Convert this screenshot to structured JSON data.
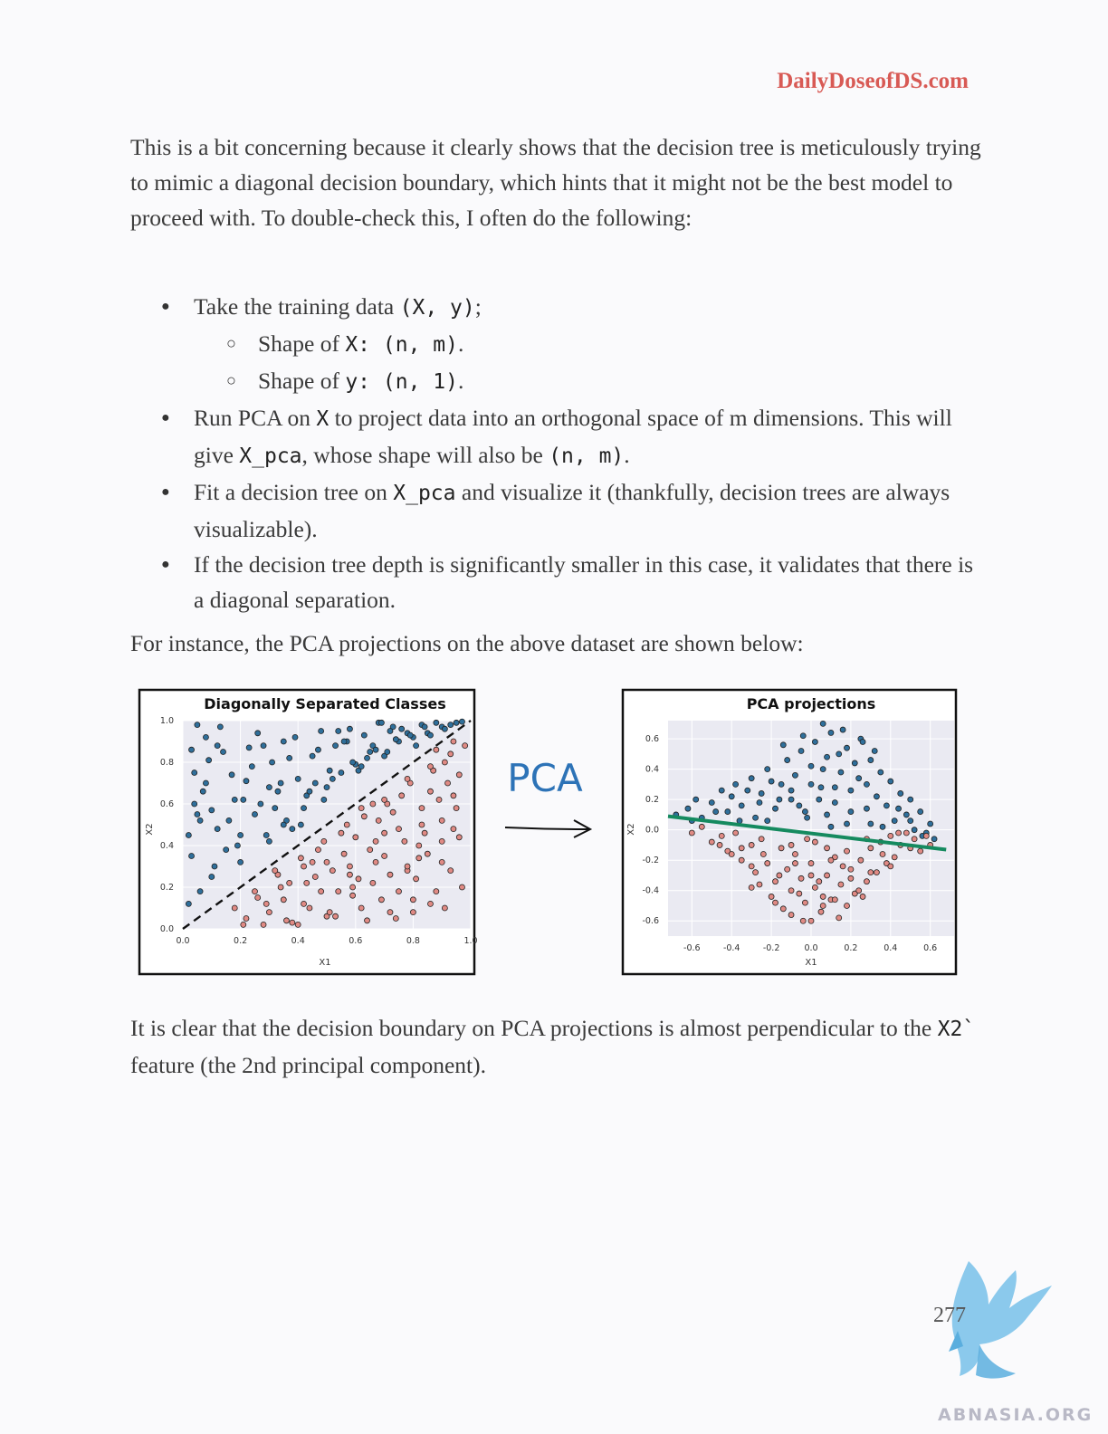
{
  "header": {
    "site": "DailyDoseofDS.com"
  },
  "intro": {
    "t1": "This is a bit concerning because it clearly shows that the decision tree is meticulously trying to mimic a diagonal decision boundary, which hints that it might not be the best model to proceed with. To double-check this, I often do the following:"
  },
  "steps": {
    "b1_t1": "Take the training data ",
    "b1_c1": "(X, y)",
    "b1_t2": ";",
    "s1_t1": "Shape of ",
    "s1_c1": "X",
    "s1_t2": ": ",
    "s1_c2": "(n, m)",
    "s1_t3": ".",
    "s2_t1": "Shape of ",
    "s2_c1": "y",
    "s2_t2": ": ",
    "s2_c2": "(n, 1)",
    "s2_t3": ".",
    "b2_t1": "Run PCA on ",
    "b2_c1": "X",
    "b2_t2": " to project data into an orthogonal space of m dimensions. This will give ",
    "b2_c2": "X_pca",
    "b2_t3": ", whose shape will also be ",
    "b2_c3": "(n, m)",
    "b2_t4": ".",
    "b3_t1": "Fit a decision tree on ",
    "b3_c1": "X_pca",
    "b3_t2": " and visualize it (thankfully, decision trees are always visualizable).",
    "b4_t1": "If the decision tree depth is significantly smaller in this case, it validates that there is a diagonal separation."
  },
  "lead": "For instance, the PCA projections on the above dataset are shown below:",
  "figure": {
    "arrow_label": "PCA"
  },
  "conclusion": {
    "t1": "It is clear that the decision boundary on PCA projections is almost perpendicular to the ",
    "c1": "X2`",
    "t2": " feature (the 2nd principal component)."
  },
  "page_number": "277",
  "watermark": "ABNASIA.ORG",
  "colors": {
    "blue": "#2f6f9b",
    "red": "#e08a84",
    "green": "#158a5f",
    "accent": "#d85a55",
    "pca_text": "#2d73b7"
  },
  "chart_data": [
    {
      "type": "scatter",
      "title": "Diagonally Separated Classes",
      "xlabel": "X1",
      "ylabel": "X2",
      "xlim": [
        0,
        1
      ],
      "ylim": [
        0,
        1
      ],
      "xticks": [
        "0.0",
        "0.2",
        "0.4",
        "0.6",
        "0.8",
        "1.0"
      ],
      "yticks": [
        "0.0",
        "0.2",
        "0.4",
        "0.6",
        "0.8",
        "1.0"
      ],
      "grid": true,
      "boundary": {
        "style": "dashed",
        "x": [
          0.0,
          1.0
        ],
        "y": [
          0.0,
          1.0
        ]
      },
      "series": [
        {
          "color": "blue",
          "x": [
            0.02,
            0.03,
            0.05,
            0.04,
            0.08,
            0.1,
            0.12,
            0.07,
            0.03,
            0.15,
            0.18,
            0.06,
            0.09,
            0.13,
            0.02,
            0.2,
            0.22,
            0.25,
            0.28,
            0.16,
            0.11,
            0.04,
            0.3,
            0.33,
            0.35,
            0.38,
            0.24,
            0.19,
            0.27,
            0.14,
            0.08,
            0.42,
            0.45,
            0.48,
            0.4,
            0.36,
            0.31,
            0.26,
            0.21,
            0.05,
            0.5,
            0.53,
            0.55,
            0.58,
            0.47,
            0.43,
            0.39,
            0.34,
            0.29,
            0.23,
            0.6,
            0.63,
            0.65,
            0.68,
            0.57,
            0.52,
            0.44,
            0.37,
            0.32,
            0.17,
            0.7,
            0.73,
            0.75,
            0.78,
            0.66,
            0.61,
            0.54,
            0.49,
            0.41,
            0.12,
            0.8,
            0.83,
            0.85,
            0.88,
            0.76,
            0.71,
            0.64,
            0.56,
            0.46,
            0.3,
            0.9,
            0.93,
            0.95,
            0.97,
            0.86,
            0.81,
            0.74,
            0.67,
            0.59,
            0.51,
            0.06,
            0.1,
            0.2,
            0.35,
            0.62,
            0.72,
            0.84,
            0.91,
            0.79,
            0.69
          ],
          "y": [
            0.12,
            0.35,
            0.55,
            0.75,
            0.92,
            0.25,
            0.48,
            0.66,
            0.86,
            0.38,
            0.62,
            0.18,
            0.81,
            0.97,
            0.45,
            0.32,
            0.71,
            0.55,
            0.88,
            0.52,
            0.3,
            0.6,
            0.42,
            0.66,
            0.9,
            0.48,
            0.78,
            0.4,
            0.6,
            0.85,
            0.7,
            0.58,
            0.83,
            0.95,
            0.72,
            0.52,
            0.8,
            0.94,
            0.62,
            0.98,
            0.68,
            0.88,
            0.75,
            0.96,
            0.86,
            0.64,
            0.92,
            0.7,
            0.45,
            0.87,
            0.79,
            0.93,
            0.85,
            0.99,
            0.9,
            0.72,
            0.66,
            0.82,
            0.58,
            0.74,
            0.83,
            0.97,
            0.9,
            0.94,
            0.88,
            0.76,
            0.95,
            0.62,
            0.5,
            0.88,
            0.92,
            0.98,
            0.94,
            0.99,
            0.96,
            0.85,
            0.82,
            0.9,
            0.7,
            0.68,
            0.97,
            0.98,
            0.99,
            0.995,
            0.93,
            0.88,
            0.91,
            0.86,
            0.8,
            0.76,
            0.52,
            0.57,
            0.45,
            0.5,
            0.78,
            0.95,
            0.97,
            0.96,
            0.93,
            0.99
          ]
        },
        {
          "color": "red",
          "x": [
            0.18,
            0.22,
            0.26,
            0.3,
            0.34,
            0.38,
            0.42,
            0.46,
            0.5,
            0.54,
            0.58,
            0.62,
            0.66,
            0.7,
            0.74,
            0.78,
            0.82,
            0.86,
            0.9,
            0.94,
            0.97,
            0.25,
            0.33,
            0.41,
            0.49,
            0.57,
            0.65,
            0.73,
            0.81,
            0.89,
            0.95,
            0.36,
            0.44,
            0.52,
            0.6,
            0.68,
            0.76,
            0.84,
            0.92,
            0.47,
            0.55,
            0.63,
            0.71,
            0.79,
            0.87,
            0.93,
            0.59,
            0.67,
            0.75,
            0.83,
            0.91,
            0.7,
            0.78,
            0.86,
            0.94,
            0.8,
            0.88,
            0.96,
            0.9,
            0.98,
            0.21,
            0.29,
            0.37,
            0.45,
            0.53,
            0.61,
            0.69,
            0.77,
            0.85,
            0.93,
            0.32,
            0.4,
            0.48,
            0.56,
            0.64,
            0.72,
            0.8,
            0.88,
            0.96,
            0.43,
            0.51,
            0.59,
            0.67,
            0.75,
            0.83,
            0.91,
            0.62,
            0.7,
            0.78,
            0.86,
            0.94,
            0.72,
            0.82,
            0.9,
            0.66,
            0.58,
            0.5,
            0.42,
            0.35,
            0.28
          ],
          "y": [
            0.1,
            0.05,
            0.15,
            0.08,
            0.2,
            0.03,
            0.12,
            0.25,
            0.06,
            0.18,
            0.3,
            0.1,
            0.22,
            0.35,
            0.05,
            0.28,
            0.4,
            0.12,
            0.32,
            0.48,
            0.2,
            0.18,
            0.26,
            0.34,
            0.42,
            0.5,
            0.38,
            0.56,
            0.24,
            0.62,
            0.58,
            0.04,
            0.1,
            0.28,
            0.44,
            0.52,
            0.64,
            0.46,
            0.7,
            0.38,
            0.46,
            0.54,
            0.6,
            0.7,
            0.76,
            0.84,
            0.2,
            0.32,
            0.48,
            0.58,
            0.8,
            0.62,
            0.72,
            0.66,
            0.9,
            0.14,
            0.86,
            0.74,
            0.52,
            0.88,
            0.02,
            0.12,
            0.22,
            0.32,
            0.06,
            0.24,
            0.14,
            0.42,
            0.36,
            0.28,
            0.28,
            0.02,
            0.18,
            0.36,
            0.04,
            0.26,
            0.08,
            0.18,
            0.44,
            0.22,
            0.08,
            0.16,
            0.42,
            0.18,
            0.5,
            0.1,
            0.58,
            0.46,
            0.3,
            0.78,
            0.64,
            0.08,
            0.34,
            0.42,
            0.6,
            0.26,
            0.32,
            0.3,
            0.14,
            0.02
          ]
        }
      ]
    },
    {
      "type": "scatter",
      "title": "PCA projections",
      "xlabel": "X1",
      "ylabel": "X2",
      "xlim": [
        -0.72,
        0.72
      ],
      "ylim": [
        -0.7,
        0.72
      ],
      "xticks": [
        "-0.6",
        "-0.4",
        "-0.2",
        "0.0",
        "0.2",
        "0.4",
        "0.6"
      ],
      "yticks": [
        "0.6",
        "0.4",
        "0.2",
        "0.0",
        "-0.2",
        "-0.4",
        "-0.6"
      ],
      "grid": true,
      "boundary": {
        "style": "solid",
        "color": "green",
        "x": [
          -0.72,
          0.68
        ],
        "y": [
          0.09,
          -0.13
        ]
      },
      "series": [
        {
          "color": "blue",
          "x": [
            -0.68,
            -0.62,
            -0.58,
            -0.55,
            -0.5,
            -0.45,
            -0.42,
            -0.38,
            -0.35,
            -0.3,
            -0.28,
            -0.25,
            -0.22,
            -0.18,
            -0.15,
            -0.12,
            -0.1,
            -0.08,
            -0.05,
            -0.03,
            0.0,
            0.02,
            0.05,
            0.08,
            0.1,
            0.12,
            0.15,
            0.18,
            0.2,
            0.22,
            0.25,
            0.28,
            0.3,
            0.33,
            0.35,
            0.38,
            0.4,
            0.42,
            0.45,
            0.48,
            0.5,
            0.52,
            0.55,
            0.58,
            -0.4,
            -0.32,
            -0.2,
            -0.1,
            0.0,
            0.06,
            0.14,
            0.24,
            0.32,
            -0.26,
            -0.16,
            -0.06,
            0.04,
            0.12,
            0.2,
            0.28,
            -0.14,
            -0.04,
            0.06,
            0.16,
            0.26,
            -0.36,
            -0.48,
            0.36,
            0.44,
            0.5,
            0.6,
            0.62,
            -0.02,
            0.08,
            0.18,
            -0.22,
            0.1,
            0.3,
            -0.6,
            0.56
          ],
          "y": [
            0.1,
            0.14,
            0.2,
            0.08,
            0.18,
            0.26,
            0.12,
            0.3,
            0.16,
            0.34,
            0.08,
            0.24,
            0.4,
            0.14,
            0.3,
            0.46,
            0.2,
            0.36,
            0.52,
            0.12,
            0.42,
            0.58,
            0.28,
            0.48,
            0.64,
            0.18,
            0.38,
            0.54,
            0.26,
            0.44,
            0.6,
            0.3,
            0.46,
            0.22,
            0.38,
            0.16,
            0.32,
            0.06,
            0.24,
            0.1,
            0.2,
            0.0,
            0.12,
            -0.02,
            0.22,
            0.26,
            0.32,
            0.26,
            0.3,
            0.4,
            0.5,
            0.34,
            0.52,
            0.18,
            0.2,
            0.16,
            0.2,
            0.28,
            0.12,
            0.14,
            0.56,
            0.62,
            0.7,
            0.66,
            0.58,
            0.06,
            0.12,
            0.02,
            0.14,
            0.06,
            0.04,
            -0.06,
            0.08,
            0.1,
            0.04,
            0.06,
            0.02,
            0.04,
            0.06,
            -0.04
          ]
        },
        {
          "color": "red",
          "x": [
            -0.6,
            -0.55,
            -0.5,
            -0.45,
            -0.42,
            -0.38,
            -0.35,
            -0.3,
            -0.28,
            -0.25,
            -0.22,
            -0.18,
            -0.15,
            -0.12,
            -0.1,
            -0.08,
            -0.05,
            -0.03,
            0.0,
            0.02,
            0.05,
            0.08,
            0.1,
            0.12,
            0.15,
            0.18,
            0.2,
            0.22,
            0.25,
            0.28,
            0.3,
            0.33,
            0.35,
            0.38,
            0.4,
            0.42,
            0.45,
            0.48,
            0.5,
            0.52,
            0.55,
            0.58,
            0.6,
            -0.4,
            -0.3,
            -0.2,
            -0.1,
            0.0,
            0.06,
            0.14,
            0.24,
            -0.26,
            -0.16,
            -0.06,
            0.04,
            0.12,
            0.2,
            -0.14,
            -0.04,
            0.06,
            0.16,
            -0.02,
            0.08,
            -0.1,
            0.02,
            -0.35,
            -0.24,
            0.28,
            0.36,
            0.44,
            -0.18,
            0.1,
            0.18,
            -0.08,
            0.0,
            0.26,
            -0.46,
            0.4,
            -0.3,
            0.3
          ],
          "y": [
            -0.02,
            0.02,
            -0.08,
            -0.04,
            -0.14,
            -0.02,
            -0.2,
            -0.1,
            -0.28,
            -0.06,
            -0.22,
            -0.34,
            -0.12,
            -0.26,
            -0.4,
            -0.16,
            -0.32,
            -0.48,
            -0.22,
            -0.38,
            -0.54,
            -0.3,
            -0.46,
            -0.18,
            -0.36,
            -0.5,
            -0.26,
            -0.42,
            -0.2,
            -0.34,
            -0.12,
            -0.28,
            -0.08,
            -0.22,
            -0.04,
            -0.18,
            -0.1,
            -0.02,
            -0.12,
            -0.06,
            -0.14,
            -0.04,
            -0.1,
            -0.16,
            -0.24,
            -0.44,
            -0.56,
            -0.6,
            -0.5,
            -0.58,
            -0.4,
            -0.36,
            -0.3,
            -0.42,
            -0.34,
            -0.46,
            -0.32,
            -0.52,
            -0.6,
            -0.44,
            -0.24,
            -0.06,
            -0.12,
            -0.1,
            -0.08,
            -0.12,
            -0.16,
            -0.06,
            -0.16,
            -0.02,
            -0.48,
            -0.2,
            -0.14,
            -0.22,
            -0.3,
            -0.44,
            -0.1,
            -0.24,
            -0.38,
            -0.28
          ]
        }
      ]
    }
  ]
}
